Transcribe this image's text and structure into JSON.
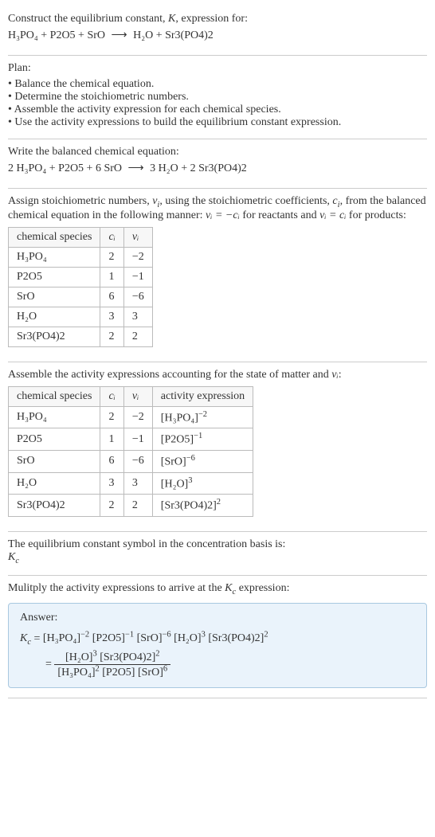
{
  "intro": {
    "line1_pre": "Construct the equilibrium constant, ",
    "K": "K",
    "line1_post": ", expression for:",
    "reaction_lhs": "H₃PO₄ + P2O5 + SrO",
    "arrow": "⟶",
    "reaction_rhs": "H₂O + Sr3(PO4)2"
  },
  "plan": {
    "title": "Plan:",
    "items": [
      "Balance the chemical equation.",
      "Determine the stoichiometric numbers.",
      "Assemble the activity expression for each chemical species.",
      "Use the activity expressions to build the equilibrium constant expression."
    ]
  },
  "balanced": {
    "title": "Write the balanced chemical equation:",
    "lhs": "2 H₃PO₄ + P2O5 + 6 SrO",
    "arrow": "⟶",
    "rhs": "3 H₂O + 2 Sr3(PO4)2"
  },
  "stoich": {
    "intro_a": "Assign stoichiometric numbers, ",
    "nu": "ν",
    "intro_b": ", using the stoichiometric coefficients, ",
    "c": "c",
    "intro_c": ", from the balanced chemical equation in the following manner: ",
    "rel_reactants_lhs": "νᵢ = −cᵢ",
    "rel_reactants_post": " for reactants and ",
    "rel_products_lhs": "νᵢ = cᵢ",
    "rel_products_post": " for products:",
    "headers": {
      "species": "chemical species",
      "ci": "cᵢ",
      "nui": "νᵢ"
    },
    "rows": [
      {
        "sp": "H₃PO₄",
        "c": "2",
        "n": "−2"
      },
      {
        "sp": "P2O5",
        "c": "1",
        "n": "−1"
      },
      {
        "sp": "SrO",
        "c": "6",
        "n": "−6"
      },
      {
        "sp": "H₂O",
        "c": "3",
        "n": "3"
      },
      {
        "sp": "Sr3(PO4)2",
        "c": "2",
        "n": "2"
      }
    ]
  },
  "activity": {
    "intro_a": "Assemble the activity expressions accounting for the state of matter and ",
    "nu": "νᵢ",
    "intro_b": ":",
    "headers": {
      "species": "chemical species",
      "ci": "cᵢ",
      "nui": "νᵢ",
      "act": "activity expression"
    },
    "rows": [
      {
        "sp": "H₃PO₄",
        "c": "2",
        "n": "−2",
        "base": "[H₃PO₄]",
        "exp": "−2"
      },
      {
        "sp": "P2O5",
        "c": "1",
        "n": "−1",
        "base": "[P2O5]",
        "exp": "−1"
      },
      {
        "sp": "SrO",
        "c": "6",
        "n": "−6",
        "base": "[SrO]",
        "exp": "−6"
      },
      {
        "sp": "H₂O",
        "c": "3",
        "n": "3",
        "base": "[H₂O]",
        "exp": "3"
      },
      {
        "sp": "Sr3(PO4)2",
        "c": "2",
        "n": "2",
        "base": "[Sr3(PO4)2]",
        "exp": "2"
      }
    ]
  },
  "symbol": {
    "line1": "The equilibrium constant symbol in the concentration basis is:",
    "kc": "K",
    "sub": "c"
  },
  "multiply": {
    "line_a": "Mulitply the activity expressions to arrive at the ",
    "kc": "K",
    "sub": "c",
    "line_b": " expression:"
  },
  "answer": {
    "label": "Answer:",
    "kc": "K",
    "sub": "c",
    "eq": " = ",
    "flat_terms": [
      {
        "base": "[H₃PO₄]",
        "exp": "−2"
      },
      {
        "base": "[P2O5]",
        "exp": "−1"
      },
      {
        "base": "[SrO]",
        "exp": "−6"
      },
      {
        "base": "[H₂O]",
        "exp": "3"
      },
      {
        "base": "[Sr3(PO4)2]",
        "exp": "2"
      }
    ],
    "frac": {
      "num": [
        {
          "base": "[H₂O]",
          "exp": "3"
        },
        {
          "base": "[Sr3(PO4)2]",
          "exp": "2"
        }
      ],
      "den": [
        {
          "base": "[H₃PO₄]",
          "exp": "2"
        },
        {
          "base": "[P2O5]",
          "exp": ""
        },
        {
          "base": "[SrO]",
          "exp": "6"
        }
      ]
    }
  },
  "style": {
    "body_width": 546,
    "body_height": 1051,
    "border_color": "#cccccc",
    "table_border": "#bbbbbb",
    "answer_bg": "#eaf3fb",
    "answer_border": "#a8c8e0",
    "font_size_body": 14
  }
}
